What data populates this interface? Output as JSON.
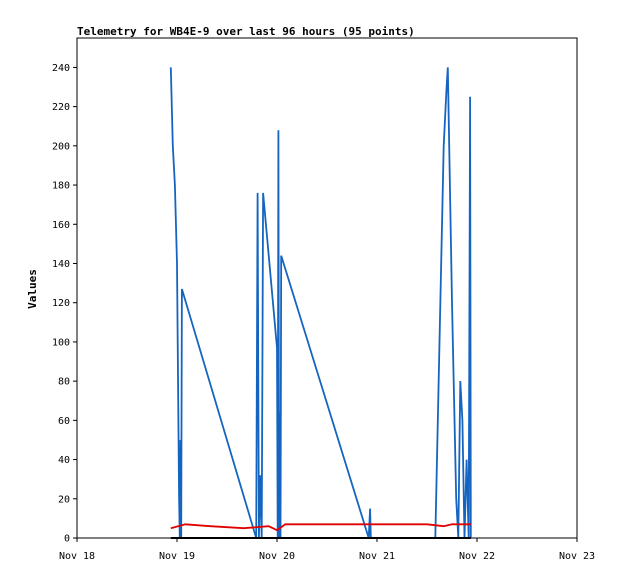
{
  "chart_data": {
    "type": "line",
    "title": "Telemetry for WB4E-9 over last 96 hours (95 points)",
    "ylabel": "Values",
    "xlabel": "",
    "ylim": [
      0,
      255
    ],
    "yticks": [
      0,
      20,
      40,
      60,
      80,
      100,
      120,
      140,
      160,
      180,
      200,
      220,
      240
    ],
    "xlim": [
      "Nov 18 00:00",
      "Nov 23 00:00"
    ],
    "xticks": [
      "Nov 18",
      "Nov 19",
      "Nov 20",
      "Nov 21",
      "Nov 22",
      "Nov 23"
    ],
    "grid": false,
    "legend": "none",
    "series": [
      {
        "color": "#1565c0",
        "points": [
          [
            "Nov 18 22:30",
            240
          ],
          [
            "Nov 18 23:00",
            200
          ],
          [
            "Nov 18 23:30",
            180
          ],
          [
            "Nov 19 00:00",
            140
          ],
          [
            "Nov 19 00:10",
            100
          ],
          [
            "Nov 19 00:20",
            60
          ],
          [
            "Nov 19 00:30",
            20
          ],
          [
            "Nov 19 00:40",
            0
          ],
          [
            "Nov 19 00:50",
            50
          ],
          [
            "Nov 19 01:00",
            0
          ],
          [
            "Nov 19 01:10",
            127
          ],
          [
            "Nov 19 19:00",
            0
          ],
          [
            "Nov 19 19:20",
            176
          ],
          [
            "Nov 19 19:40",
            0
          ],
          [
            "Nov 19 20:00",
            32
          ],
          [
            "Nov 19 20:20",
            0
          ],
          [
            "Nov 19 20:40",
            176
          ],
          [
            "Nov 20 00:00",
            97
          ],
          [
            "Nov 20 00:10",
            0
          ],
          [
            "Nov 20 00:20",
            208
          ],
          [
            "Nov 20 00:30",
            0
          ],
          [
            "Nov 20 00:40",
            64
          ],
          [
            "Nov 20 00:50",
            0
          ],
          [
            "Nov 20 01:00",
            144
          ],
          [
            "Nov 20 22:00",
            0
          ],
          [
            "Nov 20 22:20",
            15
          ],
          [
            "Nov 20 22:30",
            0
          ],
          [
            "Nov 21 14:00",
            0
          ],
          [
            "Nov 21 15:00",
            100
          ],
          [
            "Nov 21 16:00",
            200
          ],
          [
            "Nov 21 16:40",
            228
          ],
          [
            "Nov 21 17:00",
            240
          ],
          [
            "Nov 21 17:20",
            200
          ],
          [
            "Nov 21 18:00",
            120
          ],
          [
            "Nov 21 19:00",
            20
          ],
          [
            "Nov 21 19:30",
            0
          ],
          [
            "Nov 21 20:00",
            80
          ],
          [
            "Nov 21 20:30",
            60
          ],
          [
            "Nov 21 21:00",
            0
          ],
          [
            "Nov 21 21:30",
            40
          ],
          [
            "Nov 21 22:00",
            0
          ],
          [
            "Nov 21 22:20",
            225
          ],
          [
            "Nov 21 22:30",
            0
          ]
        ]
      },
      {
        "color": "#e00000",
        "points": [
          [
            "Nov 18 22:30",
            5
          ],
          [
            "Nov 19 02:00",
            7
          ],
          [
            "Nov 19 08:00",
            6
          ],
          [
            "Nov 19 16:00",
            5
          ],
          [
            "Nov 19 22:00",
            6
          ],
          [
            "Nov 20 00:00",
            4
          ],
          [
            "Nov 20 02:00",
            7
          ],
          [
            "Nov 20 12:00",
            7
          ],
          [
            "Nov 21 00:00",
            7
          ],
          [
            "Nov 21 12:00",
            7
          ],
          [
            "Nov 21 16:00",
            6
          ],
          [
            "Nov 21 18:00",
            7
          ],
          [
            "Nov 21 22:30",
            7
          ]
        ]
      },
      {
        "color": "#000000",
        "points": [
          [
            "Nov 18 22:30",
            0
          ],
          [
            "Nov 21 22:30",
            0
          ]
        ]
      }
    ]
  }
}
